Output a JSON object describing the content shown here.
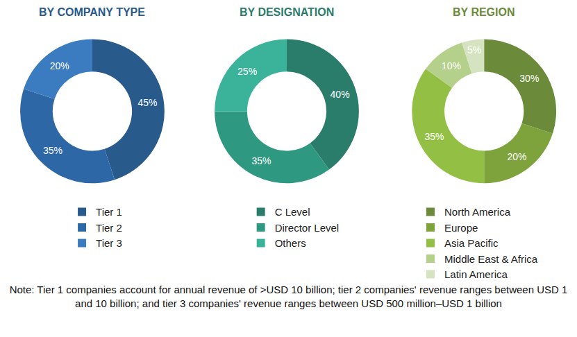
{
  "chart_data": [
    {
      "type": "pie",
      "title": "BY COMPANY TYPE",
      "categories": [
        "Tier 1",
        "Tier 2",
        "Tier 3"
      ],
      "values": [
        45,
        35,
        20
      ],
      "value_labels": [
        "45%",
        "35%",
        "20%"
      ],
      "colors": [
        "#285a8c",
        "#2e67a6",
        "#3b7cc0"
      ],
      "data_labels": true
    },
    {
      "type": "pie",
      "title": "BY DESIGNATION",
      "categories": [
        "C Level",
        "Director Level",
        "Others"
      ],
      "values": [
        40,
        35,
        25
      ],
      "value_labels": [
        "40%",
        "35%",
        "25%"
      ],
      "colors": [
        "#2a7d6b",
        "#2e9980",
        "#3bb39a"
      ],
      "data_labels": true
    },
    {
      "type": "pie",
      "title": "BY REGION",
      "categories": [
        "North America",
        "Europe",
        "Asia Pacific",
        "Middle East & Africa",
        "Latin America"
      ],
      "values": [
        30,
        20,
        35,
        10,
        5
      ],
      "value_labels": [
        "30%",
        "20%",
        "35%",
        "10%",
        "5%"
      ],
      "colors": [
        "#6b8b3a",
        "#7ea33c",
        "#93bf45",
        "#b5d08a",
        "#d5e3c0"
      ],
      "data_labels": true
    }
  ],
  "note": "Note: Tier 1 companies account for annual revenue of >USD 10 billion; tier 2 companies' revenue ranges between USD 1 and 10 billion; and tier 3 companies' revenue ranges between USD 500 million–USD 1 billion"
}
